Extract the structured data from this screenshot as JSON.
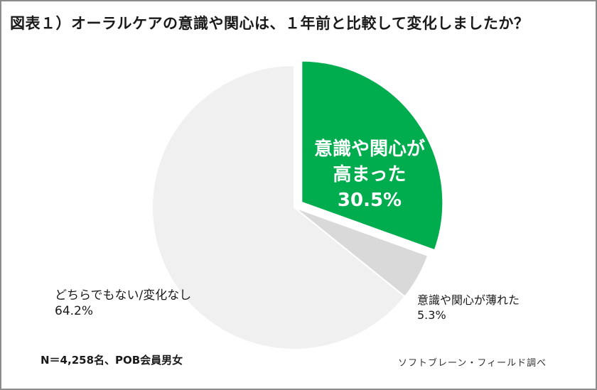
{
  "title": "図表１）オーラルケアの意識や関心は、１年前と比較して変化しましたか？",
  "labels": {
    "increased": {
      "line1": "意識や関心が",
      "line2": "高まった",
      "value": "30.5%"
    },
    "decreased": {
      "line1": "意識や関心が薄れた",
      "value": "5.3%"
    },
    "unchanged": {
      "line1": "どちらでもない/変化なし",
      "value": "64.2%"
    }
  },
  "note": "N＝4,258名、POB会員男女",
  "source": "ソフトブレーン・フィールド調べ",
  "colors": {
    "increased": "#00ad4e",
    "decreased": "#d9d9d9",
    "unchanged": "#f0f0f0",
    "border": "#8c8c8c"
  },
  "chart_data": {
    "type": "pie",
    "title": "図表１）オーラルケアの意識や関心は、１年前と比較して変化しましたか？",
    "categories": [
      "意識や関心が高まった",
      "意識や関心が薄れた",
      "どちらでもない/変化なし"
    ],
    "values": [
      30.5,
      5.3,
      64.2
    ],
    "unit": "%",
    "exploded": [
      "意識や関心が高まった"
    ],
    "start_angle": "12 o'clock, clockwise",
    "annotations": [
      "N＝4,258名、POB会員男女",
      "ソフトブレーン・フィールド調べ"
    ],
    "legend": "none (direct labels)"
  }
}
